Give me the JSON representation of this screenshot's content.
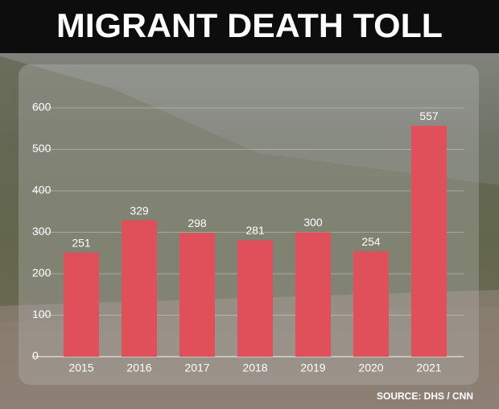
{
  "chart_data": {
    "type": "bar",
    "title": "MIGRANT DEATH TOLL",
    "source": "SOURCE: DHS / CNN",
    "categories": [
      "2015",
      "2016",
      "2017",
      "2018",
      "2019",
      "2020",
      "2021"
    ],
    "values": [
      251,
      329,
      298,
      281,
      300,
      254,
      557
    ],
    "color": "#e0505a",
    "ylim": [
      0,
      600
    ],
    "yticks": [
      0,
      100,
      200,
      300,
      400,
      500,
      600
    ],
    "grid": true
  }
}
